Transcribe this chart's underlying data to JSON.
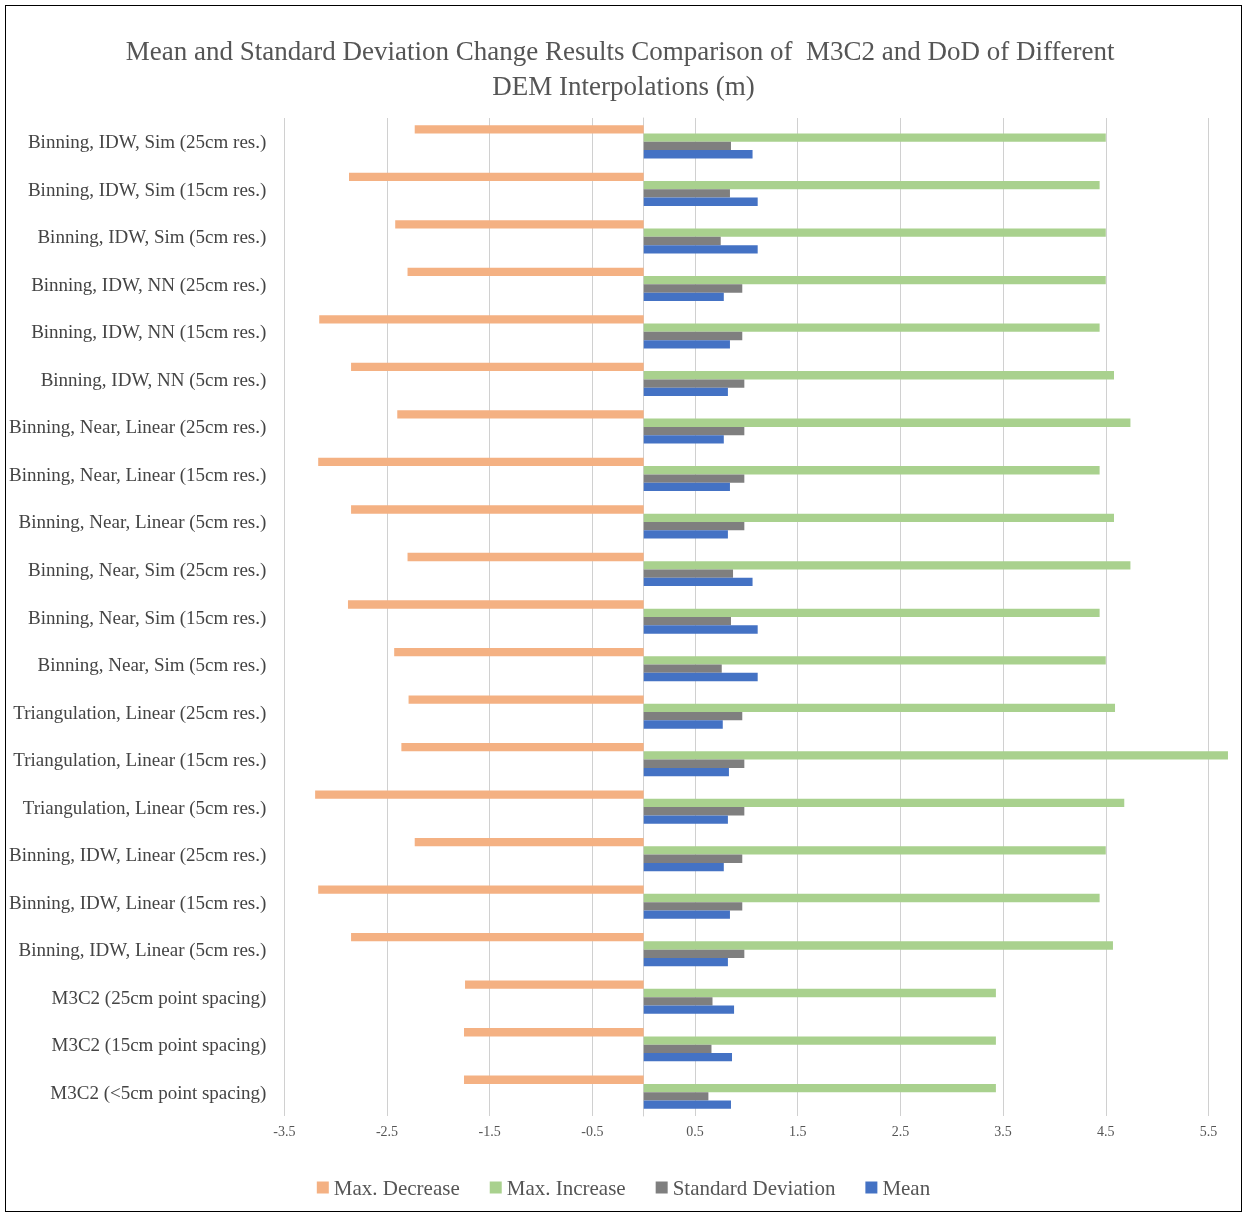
{
  "chart_data": {
    "type": "bar",
    "orientation": "horizontal",
    "title": "Mean and Standard Deviation Change Results Comparison of  M3C2 and DoD of Different DEM Interpolations (m)",
    "categories": [
      "Binning, IDW, Sim (25cm res.)",
      "Binning, IDW, Sim (15cm res.)",
      "Binning, IDW, Sim (5cm res.)",
      "Binning, IDW, NN (25cm res.)",
      "Binning, IDW, NN (15cm res.)",
      "Binning, IDW, NN (5cm res.)",
      "Binning, Near, Linear (25cm res.)",
      "Binning, Near, Linear (15cm res.)",
      "Binning, Near, Linear (5cm res.)",
      "Binning, Near, Sim (25cm res.)",
      "Binning, Near, Sim (15cm res.)",
      "Binning, Near, Sim (5cm res.)",
      "Triangulation, Linear (25cm res.)",
      "Triangulation, Linear (15cm res.)",
      "Triangulation, Linear (5cm res.)",
      "Binning, IDW, Linear (25cm res.)",
      "Binning, IDW, Linear (15cm res.)",
      "Binning, IDW, Linear (5cm res.)",
      "M3C2 (25cm point spacing)",
      "M3C2 (15cm point spacing)",
      "M3C2 (<5cm point spacing)"
    ],
    "series": [
      {
        "name": "Max. Decrease",
        "color": "#f4b183",
        "values": [
          -2.23,
          -2.87,
          -2.42,
          -2.3,
          -3.16,
          -2.85,
          -2.4,
          -3.17,
          -2.85,
          -2.3,
          -2.88,
          -2.43,
          -2.29,
          -2.36,
          -3.2,
          -2.23,
          -3.17,
          -2.85,
          -1.74,
          -1.75,
          -1.75
        ]
      },
      {
        "name": "Max. Increase",
        "color": "#a9d18e",
        "values": [
          4.5,
          4.44,
          4.5,
          4.5,
          4.44,
          4.58,
          4.74,
          4.44,
          4.58,
          4.74,
          4.44,
          4.5,
          4.59,
          5.69,
          4.68,
          4.5,
          4.44,
          4.57,
          3.43,
          3.43,
          3.43
        ]
      },
      {
        "name": "Standard Deviation",
        "color": "#7f7f7f",
        "values": [
          0.85,
          0.84,
          0.75,
          0.96,
          0.96,
          0.98,
          0.98,
          0.98,
          0.98,
          0.87,
          0.85,
          0.76,
          0.96,
          0.98,
          0.98,
          0.96,
          0.96,
          0.98,
          0.67,
          0.66,
          0.63
        ]
      },
      {
        "name": "Mean",
        "color": "#4472c4",
        "values": [
          1.06,
          1.11,
          1.11,
          0.78,
          0.84,
          0.82,
          0.78,
          0.84,
          0.82,
          1.06,
          1.11,
          1.11,
          0.77,
          0.83,
          0.82,
          0.78,
          0.84,
          0.82,
          0.88,
          0.86,
          0.85
        ]
      }
    ],
    "xlim": [
      -3.5,
      5.7
    ],
    "xticks": [
      -3.5,
      -2.5,
      -1.5,
      -0.5,
      0.5,
      1.5,
      2.5,
      3.5,
      4.5,
      5.5
    ],
    "grid": "x",
    "legend": "bottom"
  }
}
